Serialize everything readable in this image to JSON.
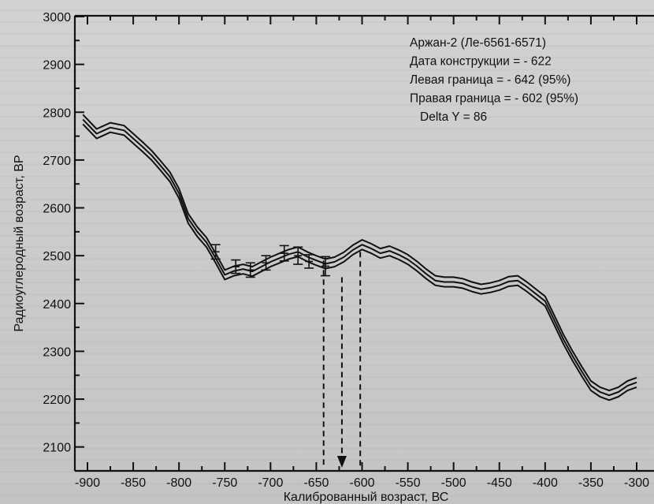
{
  "chart_data": {
    "type": "line",
    "xlabel": "Калиброванный возраст, ВС",
    "ylabel": "Радиоуглеродный возраст, ВР",
    "xlim": [
      -910,
      -300
    ],
    "ylim": [
      2050,
      3000
    ],
    "x_ticks": [
      -900,
      -850,
      -800,
      -750,
      -700,
      -650,
      -600,
      -550,
      -500,
      -450,
      -400,
      -350,
      -300
    ],
    "x_tick_labels": [
      "-900",
      "-850",
      "-800",
      "-750",
      "-700",
      "-650",
      "-600",
      "-550",
      "-500",
      "-450",
      "-400",
      "-350",
      "-300"
    ],
    "y_ticks": [
      2100,
      2200,
      2300,
      2400,
      2500,
      2600,
      2700,
      2800,
      2900,
      3000
    ],
    "y_tick_labels": [
      "2100",
      "2200",
      "2300",
      "2400",
      "2500",
      "2600",
      "2700",
      "2800",
      "2900",
      "3000"
    ],
    "grid": false,
    "series": [
      {
        "role": "upper band",
        "x": [
          -905,
          -890,
          -875,
          -860,
          -850,
          -840,
          -830,
          -820,
          -810,
          -800,
          -790,
          -780,
          -770,
          -760,
          -750,
          -740,
          -730,
          -720,
          -710,
          -700,
          -690,
          -680,
          -670,
          -660,
          -650,
          -640,
          -630,
          -620,
          -610,
          -600,
          -590,
          -580,
          -570,
          -560,
          -550,
          -540,
          -530,
          -520,
          -510,
          -500,
          -490,
          -480,
          -470,
          -460,
          -450,
          -440,
          -430,
          -420,
          -410,
          -400,
          -390,
          -380,
          -370,
          -360,
          -350,
          -340,
          -330,
          -320,
          -310,
          -300
        ],
        "y": [
          2795,
          2765,
          2778,
          2772,
          2755,
          2738,
          2720,
          2698,
          2675,
          2640,
          2588,
          2560,
          2538,
          2505,
          2470,
          2478,
          2482,
          2477,
          2487,
          2497,
          2505,
          2513,
          2518,
          2508,
          2500,
          2493,
          2497,
          2507,
          2522,
          2533,
          2525,
          2515,
          2520,
          2512,
          2502,
          2488,
          2472,
          2458,
          2455,
          2455,
          2452,
          2445,
          2440,
          2443,
          2448,
          2456,
          2458,
          2445,
          2430,
          2415,
          2375,
          2335,
          2300,
          2268,
          2238,
          2225,
          2218,
          2225,
          2238,
          2245
        ]
      },
      {
        "role": "calibration curve",
        "x": [
          -905,
          -890,
          -875,
          -860,
          -850,
          -840,
          -830,
          -820,
          -810,
          -800,
          -790,
          -780,
          -770,
          -760,
          -750,
          -740,
          -730,
          -720,
          -710,
          -700,
          -690,
          -680,
          -670,
          -660,
          -650,
          -640,
          -630,
          -620,
          -610,
          -600,
          -590,
          -580,
          -570,
          -560,
          -550,
          -540,
          -530,
          -520,
          -510,
          -500,
          -490,
          -480,
          -470,
          -460,
          -450,
          -440,
          -430,
          -420,
          -410,
          -400,
          -390,
          -380,
          -370,
          -360,
          -350,
          -340,
          -330,
          -320,
          -310,
          -300
        ],
        "y": [
          2785,
          2755,
          2768,
          2762,
          2745,
          2728,
          2710,
          2688,
          2665,
          2630,
          2578,
          2550,
          2528,
          2495,
          2460,
          2468,
          2472,
          2467,
          2477,
          2487,
          2495,
          2503,
          2508,
          2498,
          2490,
          2483,
          2487,
          2497,
          2512,
          2523,
          2515,
          2505,
          2510,
          2502,
          2492,
          2478,
          2462,
          2448,
          2445,
          2445,
          2442,
          2435,
          2430,
          2433,
          2438,
          2446,
          2448,
          2435,
          2420,
          2405,
          2365,
          2325,
          2290,
          2258,
          2228,
          2215,
          2208,
          2215,
          2228,
          2235
        ]
      },
      {
        "role": "lower band",
        "x": [
          -905,
          -890,
          -875,
          -860,
          -850,
          -840,
          -830,
          -820,
          -810,
          -800,
          -790,
          -780,
          -770,
          -760,
          -750,
          -740,
          -730,
          -720,
          -710,
          -700,
          -690,
          -680,
          -670,
          -660,
          -650,
          -640,
          -630,
          -620,
          -610,
          -600,
          -590,
          -580,
          -570,
          -560,
          -550,
          -540,
          -530,
          -520,
          -510,
          -500,
          -490,
          -480,
          -470,
          -460,
          -450,
          -440,
          -430,
          -420,
          -410,
          -400,
          -390,
          -380,
          -370,
          -360,
          -350,
          -340,
          -330,
          -320,
          -310,
          -300
        ],
        "y": [
          2775,
          2745,
          2758,
          2752,
          2735,
          2718,
          2700,
          2678,
          2655,
          2620,
          2568,
          2540,
          2518,
          2485,
          2450,
          2458,
          2462,
          2457,
          2467,
          2477,
          2485,
          2493,
          2498,
          2488,
          2480,
          2473,
          2477,
          2487,
          2502,
          2513,
          2505,
          2495,
          2500,
          2492,
          2482,
          2468,
          2452,
          2438,
          2435,
          2435,
          2432,
          2425,
          2420,
          2423,
          2428,
          2436,
          2438,
          2425,
          2410,
          2395,
          2355,
          2315,
          2280,
          2248,
          2218,
          2205,
          2198,
          2205,
          2218,
          2225
        ]
      }
    ],
    "points": [
      {
        "x": -760,
        "y": 2508,
        "err": 15
      },
      {
        "x": -738,
        "y": 2477,
        "err": 14
      },
      {
        "x": -722,
        "y": 2470,
        "err": 15
      },
      {
        "x": -705,
        "y": 2485,
        "err": 15
      },
      {
        "x": -685,
        "y": 2505,
        "err": 16
      },
      {
        "x": -670,
        "y": 2500,
        "err": 18
      },
      {
        "x": -658,
        "y": 2488,
        "err": 14
      },
      {
        "x": -640,
        "y": 2478,
        "err": 20
      }
    ],
    "guides": [
      {
        "x": -642,
        "from_y": 2490,
        "to_y": 2055
      },
      {
        "x": -622,
        "from_y": 2455,
        "to_y": 2055,
        "arrow": true
      },
      {
        "x": -602,
        "from_y": 2508,
        "to_y": 2055
      }
    ],
    "annotation": {
      "lines": [
        "Аржан-2 (Ле-6561-6571)",
        "Дата конструкции = - 622",
        "Левая граница = - 642 (95%)",
        "Правая граница = - 602 (95%)",
        "Delta Y = 86"
      ]
    },
    "colors": {
      "ink": "#111111",
      "background": "#c9c9c7"
    }
  }
}
